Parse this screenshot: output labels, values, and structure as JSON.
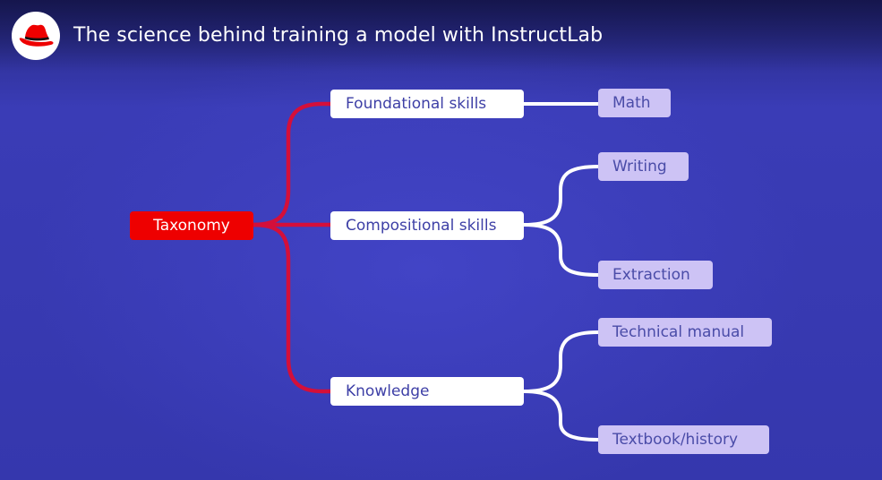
{
  "header": {
    "title": "The science behind training a model with InstructLab",
    "logo_icon": "redhat-fedora-icon"
  },
  "colors": {
    "background": "#3536ad",
    "root_node": "#ee0000",
    "root_connector": "#d40f3a",
    "category_node": "#ffffff",
    "leaf_node": "#cdc3f5",
    "leaf_connector": "#ffffff"
  },
  "diagram": {
    "root": "Taxonomy",
    "categories": [
      {
        "label": "Foundational skills",
        "children": [
          "Math"
        ]
      },
      {
        "label": "Compositional skills",
        "children": [
          "Writing",
          "Extraction"
        ]
      },
      {
        "label": "Knowledge",
        "children": [
          "Technical manual",
          "Textbook/history"
        ]
      }
    ]
  }
}
